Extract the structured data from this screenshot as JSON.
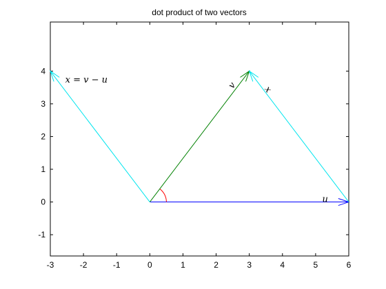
{
  "chart_data": {
    "type": "line",
    "title": "dot product of two vectors",
    "xlabel": "",
    "ylabel": "",
    "xlim": [
      -3,
      6
    ],
    "ylim": [
      -1.65,
      5.5
    ],
    "xticks": [
      -3,
      -2,
      -1,
      0,
      1,
      2,
      3,
      4,
      5,
      6
    ],
    "yticks": [
      -1,
      0,
      1,
      2,
      3,
      4
    ],
    "xtick_labels": [
      "-3",
      "-2",
      "-1",
      "0",
      "1",
      "2",
      "3",
      "4",
      "5",
      "6"
    ],
    "ytick_labels": [
      "-1",
      "0",
      "1",
      "2",
      "3",
      "4"
    ],
    "grid": false,
    "series": [
      {
        "x": [
          0,
          6
        ],
        "y": [
          0,
          0
        ],
        "color": "#0000ff",
        "arrow": true
      },
      {
        "x": [
          0,
          3
        ],
        "y": [
          0,
          4
        ],
        "color": "#008000",
        "arrow": true
      },
      {
        "x": [
          0,
          -3
        ],
        "y": [
          0,
          4
        ],
        "color": "#00e5ee",
        "arrow": true
      },
      {
        "x": [
          6,
          3
        ],
        "y": [
          0,
          4
        ],
        "color": "#00e5ee",
        "arrow": true
      }
    ],
    "angle_arc": {
      "center": [
        0,
        0
      ],
      "radius": 0.5,
      "from_deg": 0,
      "to_deg": 53.13,
      "color": "#ff0000"
    },
    "annotations": [
      {
        "text": "x = v − u",
        "x": -2.55,
        "y": 3.65
      },
      {
        "text": "v",
        "x": 2.5,
        "y": 3.45,
        "rotate": -53
      },
      {
        "text": "x",
        "x": 3.45,
        "y": 3.45,
        "rotate": 53
      },
      {
        "text": "u",
        "x": 5.2,
        "y": 0.0
      }
    ]
  }
}
